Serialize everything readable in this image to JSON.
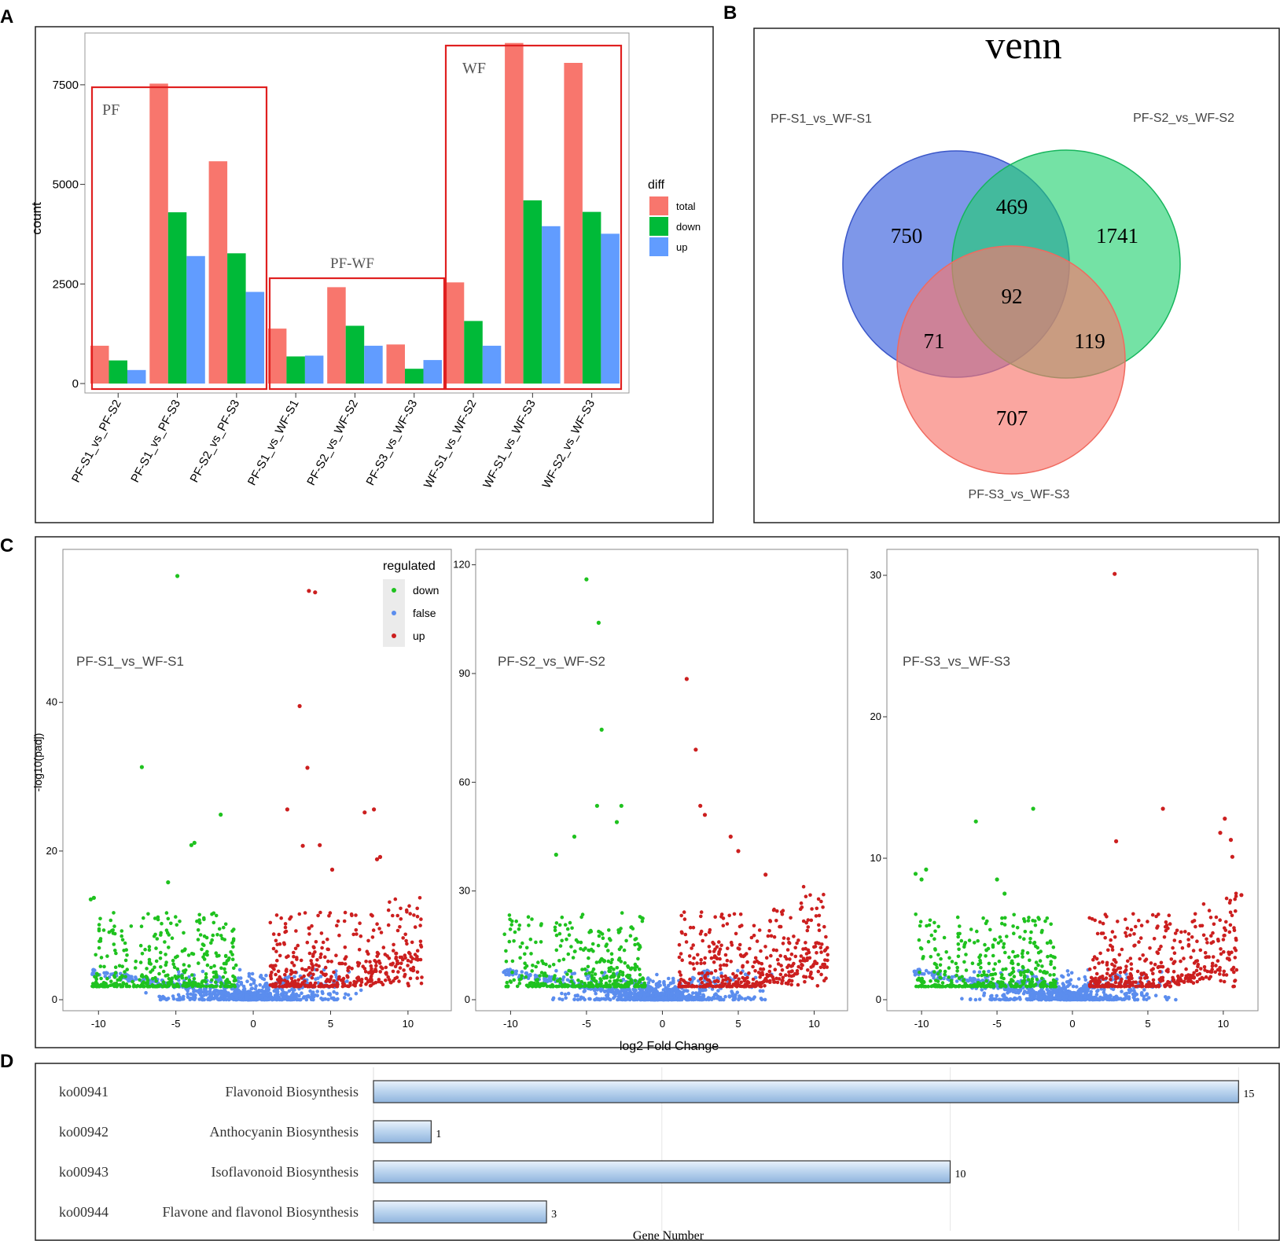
{
  "panels": {
    "a": "A",
    "b": "B",
    "c": "C",
    "d": "D"
  },
  "chart_data": [
    {
      "id": "A",
      "type": "bar",
      "ylabel": "count",
      "ylim": [
        0,
        8800
      ],
      "yticks": [
        0,
        2500,
        5000,
        7500
      ],
      "categories": [
        "PF-S1_vs_PF-S2",
        "PF-S1_vs_PF-S3",
        "PF-S2_vs_PF-S3",
        "PF-S1_vs_WF-S1",
        "PF-S2_vs_WF-S2",
        "PF-S3_vs_WF-S3",
        "WF-S1_vs_WF-S2",
        "WF-S1_vs_WF-S3",
        "WF-S2_vs_WF-S3"
      ],
      "series": [
        {
          "name": "total",
          "color": "#f8766d",
          "values": [
            950,
            7530,
            5580,
            1380,
            2420,
            980,
            2540,
            8550,
            8050
          ]
        },
        {
          "name": "down",
          "color": "#00ba38",
          "values": [
            580,
            4300,
            3270,
            680,
            1450,
            370,
            1570,
            4600,
            4310
          ]
        },
        {
          "name": "up",
          "color": "#619cff",
          "values": [
            340,
            3200,
            2300,
            700,
            950,
            590,
            950,
            3950,
            3760
          ]
        }
      ],
      "legend_title": "diff",
      "groups": [
        {
          "label": "PF",
          "categories": [
            0,
            1,
            2
          ]
        },
        {
          "label": "PF-WF",
          "categories": [
            3,
            4,
            5
          ]
        },
        {
          "label": "WF",
          "categories": [
            6,
            7,
            8
          ]
        }
      ]
    },
    {
      "id": "B",
      "type": "venn",
      "title": "venn",
      "sets": [
        {
          "name": "PF-S1_vs_WF-S1",
          "color": "#4c6fe0"
        },
        {
          "name": "PF-S2_vs_WF-S2",
          "color": "#1fd16e"
        },
        {
          "name": "PF-S3_vs_WF-S3",
          "color": "#f8766d"
        }
      ],
      "regions": {
        "s1_only": "750",
        "s1_s2": "469",
        "s2_only": "1741",
        "all": "92",
        "s1_s3": "71",
        "s2_s3": "119",
        "s3_only": "707"
      }
    },
    {
      "id": "C",
      "type": "scatter",
      "xlabel": "log2 Fold Change",
      "ylabel": "-log10(padj)",
      "legend_title": "regulated",
      "legend": [
        {
          "name": "down",
          "color": "#1fc21f"
        },
        {
          "name": "false",
          "color": "#5b8dee"
        },
        {
          "name": "up",
          "color": "#cc1f1f"
        }
      ],
      "xticks": [
        -10,
        -5,
        0,
        5,
        10
      ],
      "subplots": [
        {
          "title": "PF-S1_vs_WF-S1",
          "ymax": 59,
          "yticks": [
            0,
            20,
            40
          ],
          "notable_up": [
            [
              3.6,
              55
            ],
            [
              4,
              54.8
            ],
            [
              3,
              39.5
            ],
            [
              3.5,
              31.2
            ],
            [
              7.8,
              25.6
            ],
            [
              7.2,
              25.2
            ],
            [
              2.2,
              25.6
            ],
            [
              3.2,
              20.7
            ],
            [
              4.3,
              20.8
            ],
            [
              8,
              18.9
            ],
            [
              8.2,
              19.2
            ],
            [
              5.1,
              17.5
            ]
          ],
          "notable_down": [
            [
              -4.9,
              57
            ],
            [
              -7.2,
              31.3
            ],
            [
              -2.1,
              24.9
            ],
            [
              -3.8,
              21.1
            ],
            [
              -4,
              20.8
            ],
            [
              -5.5,
              15.8
            ],
            [
              -10.5,
              13.5
            ],
            [
              -10.3,
              13.7
            ]
          ]
        },
        {
          "title": "PF-S2_vs_WF-S2",
          "ymax": 121,
          "yticks": [
            0,
            30,
            60,
            90,
            120
          ],
          "notable_up": [
            [
              1.6,
              88.5
            ],
            [
              2.2,
              69
            ],
            [
              2.5,
              53.5
            ],
            [
              2.8,
              51
            ],
            [
              4.5,
              45
            ],
            [
              5,
              41
            ],
            [
              6.8,
              34.5
            ]
          ],
          "notable_down": [
            [
              -5,
              116
            ],
            [
              -4.2,
              104
            ],
            [
              -4,
              74.5
            ],
            [
              -4.3,
              53.5
            ],
            [
              -2.7,
              53.5
            ],
            [
              -3,
              49
            ],
            [
              -5.8,
              45
            ],
            [
              -7,
              40
            ]
          ]
        },
        {
          "title": "PF-S3_vs_WF-S3",
          "ymax": 31,
          "yticks": [
            0,
            10,
            20,
            30
          ],
          "notable_up": [
            [
              2.8,
              30.1
            ],
            [
              6,
              13.5
            ],
            [
              10.1,
              12.8
            ],
            [
              9.8,
              11.8
            ],
            [
              10.5,
              11.3
            ],
            [
              10.6,
              10.1
            ],
            [
              11.2,
              7.4
            ],
            [
              2.9,
              11.2
            ]
          ],
          "notable_down": [
            [
              -2.6,
              13.5
            ],
            [
              -6.4,
              12.6
            ],
            [
              -10.4,
              8.9
            ],
            [
              -10,
              8.5
            ],
            [
              -9.7,
              9.2
            ],
            [
              -5,
              8.5
            ],
            [
              -4.5,
              7.5
            ]
          ]
        }
      ]
    },
    {
      "id": "D",
      "type": "bar",
      "orientation": "horizontal",
      "xlabel": "Gene Number",
      "xlim": [
        0,
        15.5
      ],
      "categories": [
        {
          "id": "ko00941",
          "name": "Flavonoid Biosynthesis"
        },
        {
          "id": "ko00942",
          "name": "Anthocyanin Biosynthesis"
        },
        {
          "id": "ko00943",
          "name": "Isoflavonoid Biosynthesis"
        },
        {
          "id": "ko00944",
          "name": "Flavone and flavonol Biosynthesis"
        }
      ],
      "values": [
        15,
        1,
        10,
        3
      ]
    }
  ]
}
